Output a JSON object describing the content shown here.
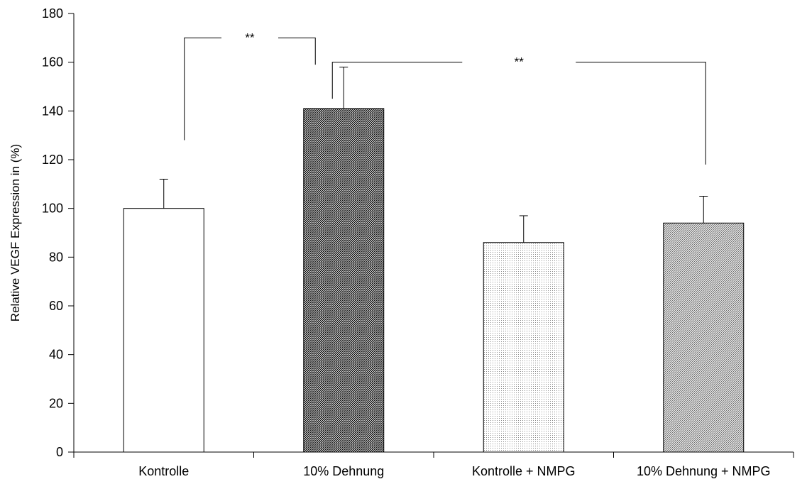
{
  "chart_data": {
    "type": "bar",
    "categories": [
      "Kontrolle",
      "10% Dehnung",
      "Kontrolle + NMPG",
      "10% Dehnung + NMPG"
    ],
    "values": [
      100,
      141,
      86,
      94
    ],
    "errors": [
      12,
      17,
      11,
      11
    ],
    "fills": [
      "none",
      "dense-crosshatch",
      "fine-dots",
      "diagonal-hatch"
    ],
    "ylabel": "Relative VEGF Expression in (%)",
    "xlabel": "",
    "ylim": [
      0,
      180
    ],
    "yticks": [
      0,
      20,
      40,
      60,
      80,
      100,
      120,
      140,
      160,
      180
    ],
    "grid": false,
    "significance": [
      {
        "from": 0,
        "to": 1,
        "label": "**",
        "level": 170
      },
      {
        "from": 1,
        "to": 3,
        "label": "**",
        "level": 160
      }
    ]
  }
}
